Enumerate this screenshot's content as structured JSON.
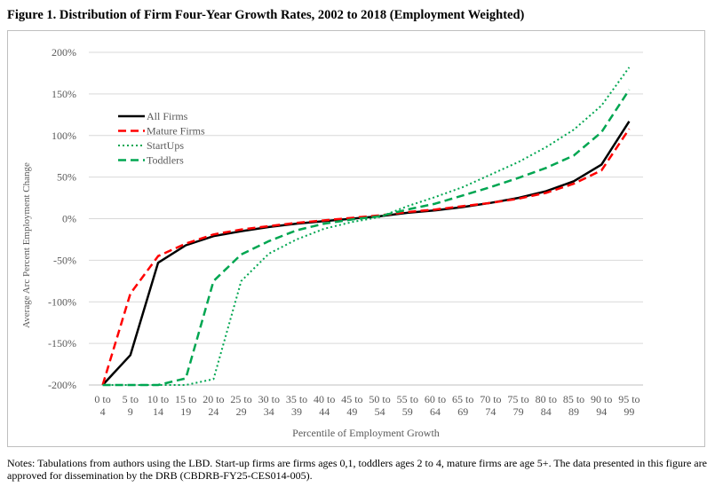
{
  "figure": {
    "title": "Figure 1. Distribution of Firm Four-Year Growth Rates, 2002 to 2018 (Employment Weighted)",
    "notes": "Notes: Tabulations from authors using the LBD. Start-up firms are firms ages 0,1, toddlers ages 2 to 4, mature firms are age 5+. The data presented in this figure are approved for dissemination by the DRB (CBDRB-FY25-CES014-005)."
  },
  "chart_data": {
    "type": "line",
    "title": "Figure 1. Distribution of Firm Four-Year Growth Rates, 2002 to 2018 (Employment Weighted)",
    "xlabel": "Percentile of Employment Growth",
    "ylabel": "Average Arc Percent Employment Change",
    "categories": [
      [
        "0 to",
        "4"
      ],
      [
        "5 to",
        "9"
      ],
      [
        "10 to",
        "14"
      ],
      [
        "15 to",
        "19"
      ],
      [
        "20 to",
        "24"
      ],
      [
        "25 to",
        "29"
      ],
      [
        "30 to",
        "34"
      ],
      [
        "35 to",
        "39"
      ],
      [
        "40 to",
        "44"
      ],
      [
        "45 to",
        "49"
      ],
      [
        "50 to",
        "54"
      ],
      [
        "55 to",
        "59"
      ],
      [
        "60 to",
        "64"
      ],
      [
        "65 to",
        "69"
      ],
      [
        "70 to",
        "74"
      ],
      [
        "75 to",
        "79"
      ],
      [
        "80 to",
        "84"
      ],
      [
        "85 to",
        "89"
      ],
      [
        "90 to",
        "94"
      ],
      [
        "95 to",
        "99"
      ]
    ],
    "yticks": [
      -200,
      -150,
      -100,
      -50,
      0,
      50,
      100,
      150,
      200
    ],
    "ytick_labels": [
      "-200%",
      "-150%",
      "-100%",
      "-50%",
      "0%",
      "50%",
      "100%",
      "150%",
      "200%"
    ],
    "ylim": [
      -200,
      200
    ],
    "grid": "horizontal",
    "legend_position": "top-left",
    "series": [
      {
        "name": "All Firms",
        "color": "#000000",
        "dash": "solid",
        "values": [
          -200,
          -164,
          -53,
          -32,
          -21,
          -15,
          -10,
          -6,
          -3,
          0,
          3,
          7,
          10,
          14,
          19,
          25,
          33,
          45,
          65,
          117
        ]
      },
      {
        "name": "Mature Firms",
        "color": "#ff0000",
        "dash": "dash",
        "values": [
          -200,
          -90,
          -45,
          -30,
          -19,
          -13,
          -9,
          -5,
          -2,
          1,
          4,
          8,
          11,
          15,
          19,
          24,
          31,
          42,
          58,
          108
        ]
      },
      {
        "name": "StartUps",
        "color": "#00a651",
        "dash": "dot",
        "values": [
          -200,
          -200,
          -200,
          -200,
          -193,
          -75,
          -42,
          -25,
          -12,
          -4,
          2,
          15,
          26,
          38,
          53,
          68,
          86,
          107,
          136,
          182
        ]
      },
      {
        "name": "Toddlers",
        "color": "#00a651",
        "dash": "dash",
        "values": [
          -200,
          -200,
          -200,
          -192,
          -75,
          -43,
          -27,
          -14,
          -6,
          -1,
          3,
          11,
          18,
          28,
          38,
          49,
          61,
          76,
          104,
          155
        ]
      }
    ]
  }
}
